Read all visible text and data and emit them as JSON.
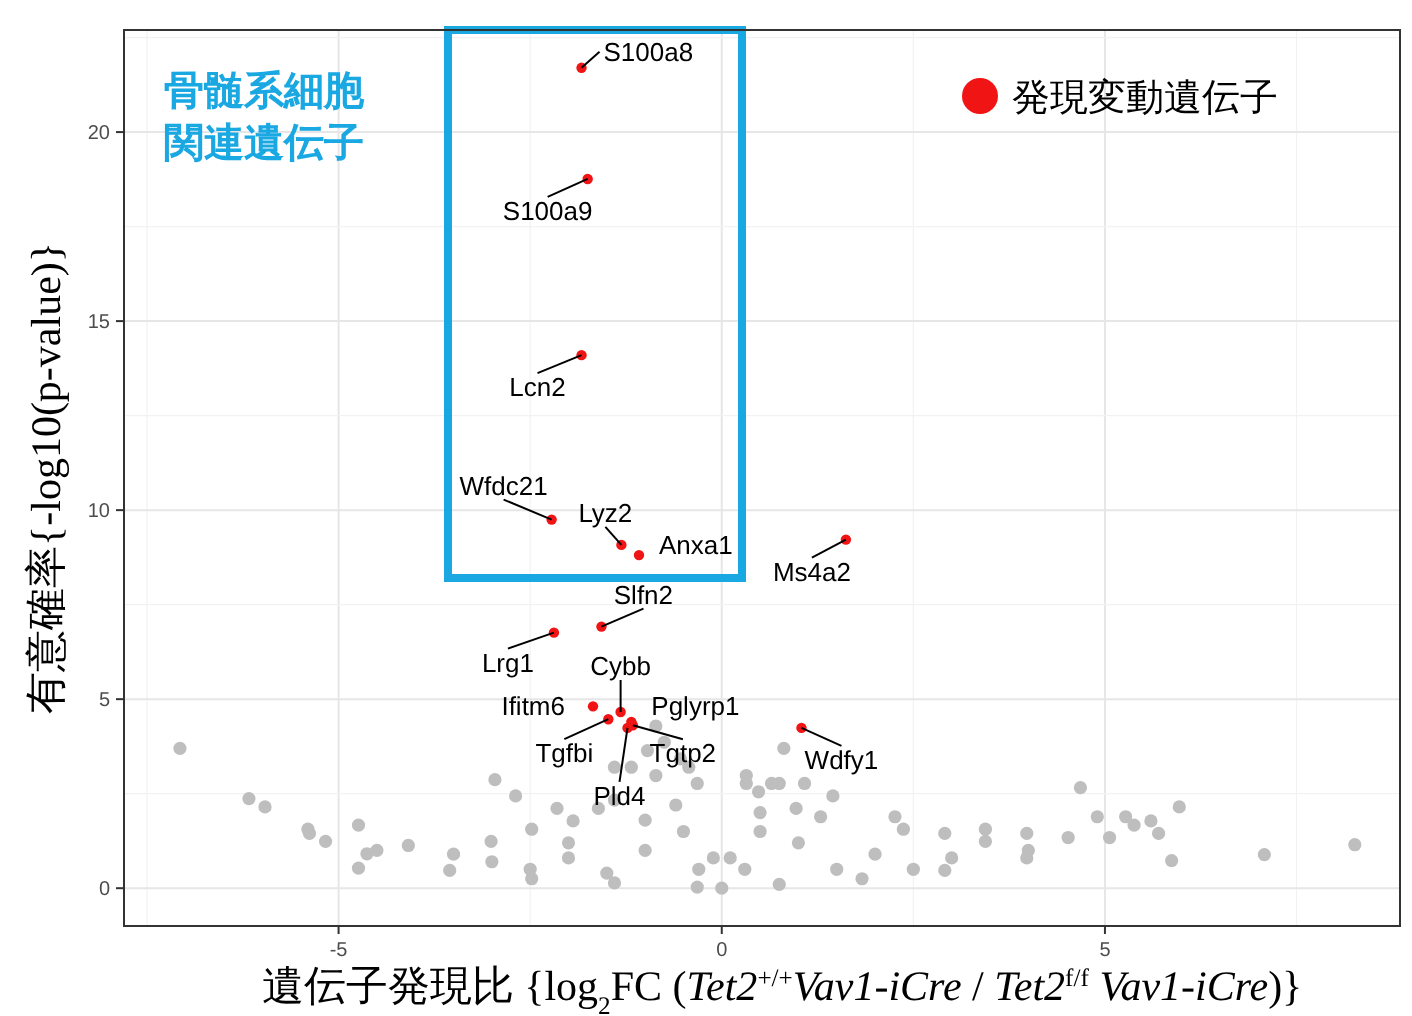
{
  "chart_data": {
    "type": "scatter",
    "xlabel": "遺伝子発現比 {log$_{2}$FC (*Tet2*$^{+/+}$*Vav1-iCre* / *Tet2*$^{f/f}$ *Vav1-iCre*)}",
    "ylabel": "有意確率{-log10(p-value)}",
    "xlim": [
      -7.8,
      8.85
    ],
    "ylim": [
      -1,
      22.7
    ],
    "xticks": [
      -5,
      0,
      5
    ],
    "yticks": [
      0,
      5,
      10,
      15,
      20
    ],
    "grid": true,
    "legend": "top right",
    "marker": "circle",
    "series": [
      {
        "color": "#bebebe",
        "x": [
          -7.07,
          -6.17,
          -5.96,
          -5.4,
          -4.74,
          -4.74,
          4.68,
          5.97,
          5.87,
          7.08,
          8.26,
          4.9,
          0.81,
          1.45,
          -0.86,
          -1.4,
          -1.61,
          -2.15,
          -2.69,
          -2.96,
          0.32,
          0.48,
          0.75,
          1.08,
          0.97,
          2.26,
          2.91,
          3.44,
          3.98,
          5.27,
          5.7,
          -0.32,
          -0.54,
          -0.75,
          -0.97,
          -1.18,
          -5.38,
          -4.63,
          -3.55,
          -2.48,
          -1.4,
          -0.32,
          0,
          0.75,
          1.83,
          2.91,
          3.98,
          5.06,
          5.6,
          -5.17,
          -4.09,
          -3.01,
          -2.48,
          -1.94,
          -1.4,
          -0.86,
          -0.43,
          -0.11,
          0.11,
          0.32,
          0.65,
          1.29,
          2.37,
          3.44,
          4.52,
          5.38,
          -3,
          -2,
          -1,
          -0.5,
          -1,
          -2,
          -3.5,
          -4.5,
          1,
          2,
          3,
          4,
          0.5,
          0.3,
          -0.3,
          1.5,
          -1.5,
          2.5,
          -2.5,
          -0.6,
          0.5
        ],
        "values": [
          3.7,
          2.37,
          2.15,
          1.56,
          1.67,
          0.53,
          2.66,
          2.15,
          0.73,
          0.89,
          1.15,
          1.89,
          3.7,
          2.44,
          4.29,
          3.2,
          2.11,
          2.11,
          2.44,
          2.87,
          2.77,
          2.55,
          2.77,
          2.77,
          2.11,
          1.89,
          1.45,
          1.56,
          1.45,
          1.89,
          1.45,
          2.77,
          3.42,
          3.86,
          3.64,
          3.2,
          1.45,
          0.91,
          0.47,
          0.25,
          0.14,
          0.03,
          0,
          0.1,
          0.25,
          0.47,
          0.8,
          1.34,
          1.78,
          1.24,
          1.13,
          1.24,
          1.56,
          1.78,
          2.33,
          2.98,
          3.2,
          0.8,
          0.8,
          2.98,
          2.77,
          1.89,
          1.56,
          1.24,
          1.34,
          1.67,
          0.7,
          0.8,
          1,
          1.5,
          1.8,
          1.2,
          0.9,
          1,
          1.2,
          0.9,
          0.8,
          1,
          1.5,
          0.5,
          0.5,
          0.5,
          0.4,
          0.5,
          0.5,
          2.2,
          2
        ]
      },
      {
        "name": "発現変動遺伝子",
        "color": "#f01414",
        "x": [
          -1.83,
          -1.75,
          -1.83,
          -2.22,
          -1.31,
          -1.08,
          1.62,
          -1.57,
          -2.19,
          -1.32,
          -1.68,
          -1.48,
          -1.18,
          -1.16,
          -1.23,
          1.04
        ],
        "values": [
          21.7,
          18.76,
          14.1,
          9.75,
          9.08,
          8.81,
          9.22,
          6.92,
          6.76,
          4.66,
          4.81,
          4.47,
          4.4,
          4.31,
          4.24,
          4.24
        ]
      }
    ],
    "annotations": [
      {
        "text": "S100a8",
        "x": -1.83,
        "y": 21.7
      },
      {
        "text": "S100a9",
        "x": -1.75,
        "y": 18.76
      },
      {
        "text": "Lcn2",
        "x": -1.83,
        "y": 14.1
      },
      {
        "text": "Wfdc21",
        "x": -2.22,
        "y": 9.75
      },
      {
        "text": "Lyz2",
        "x": -1.31,
        "y": 9.08
      },
      {
        "text": "Anxa1",
        "x": -1.08,
        "y": 8.81
      },
      {
        "text": "Ms4a2",
        "x": 1.62,
        "y": 9.22
      },
      {
        "text": "Slfn2",
        "x": -1.57,
        "y": 6.92
      },
      {
        "text": "Lrg1",
        "x": -2.19,
        "y": 6.76
      },
      {
        "text": "Cybb",
        "x": -1.32,
        "y": 4.66
      },
      {
        "text": "Ifitm6",
        "x": -1.68,
        "y": 4.81
      },
      {
        "text": "Tgfbi",
        "x": -1.48,
        "y": 4.47
      },
      {
        "text": "Pglyrp1",
        "x": -1.18,
        "y": 4.4
      },
      {
        "text": "Tgtp2",
        "x": -1.16,
        "y": 4.31
      },
      {
        "text": "Pld4",
        "x": -1.23,
        "y": 4.24
      },
      {
        "text": "Wdfy1",
        "x": 1.04,
        "y": 4.24
      },
      "骨髄系細胞関連遺伝子"
    ]
  }
}
